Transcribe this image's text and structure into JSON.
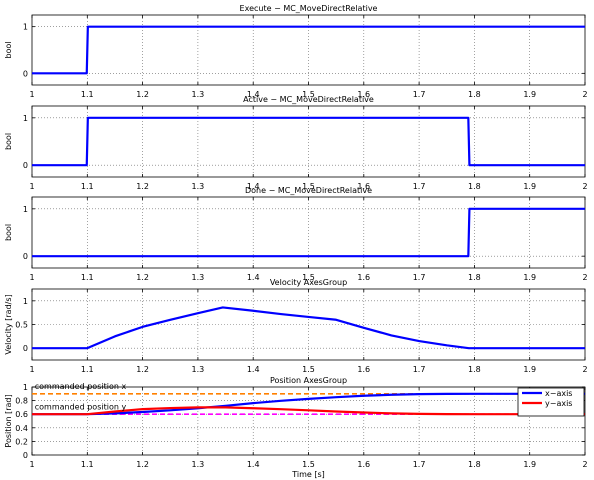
{
  "figure": {
    "background": "#ffffff",
    "axes_color": "#000000",
    "grid_color": "#666666"
  },
  "chart_data": [
    {
      "type": "line",
      "title": "Execute − MC_MoveDirectRelative",
      "xlabel": "",
      "ylabel": "bool",
      "xlim": [
        1,
        2
      ],
      "ylim": [
        -0.25,
        1.25
      ],
      "xticks": [
        1,
        1.1,
        1.2,
        1.3,
        1.4,
        1.5,
        1.6,
        1.7,
        1.8,
        1.9,
        2
      ],
      "xtick_labels": [
        "1",
        "1.1",
        "1.2",
        "1.3",
        "1.4",
        "1.5",
        "1.6",
        "1.7",
        "1.8",
        "1.9",
        "2"
      ],
      "yticks": [
        0,
        1
      ],
      "ytick_labels": [
        "0",
        "1"
      ],
      "grid": true,
      "series": [
        {
          "color": "#0000ff",
          "dash": "solid",
          "x": [
            1,
            1.099,
            1.101,
            2
          ],
          "y": [
            0,
            0,
            1,
            1
          ]
        }
      ]
    },
    {
      "type": "line",
      "title": "Active − MC_MoveDirectRelative",
      "xlabel": "",
      "ylabel": "bool",
      "xlim": [
        1,
        2
      ],
      "ylim": [
        -0.25,
        1.25
      ],
      "xticks": [
        1,
        1.1,
        1.2,
        1.3,
        1.4,
        1.5,
        1.6,
        1.7,
        1.8,
        1.9,
        2
      ],
      "xtick_labels": [
        "1",
        "1.1",
        "1.2",
        "1.3",
        "1.4",
        "1.5",
        "1.6",
        "1.7",
        "1.8",
        "1.9",
        "2"
      ],
      "yticks": [
        0,
        1
      ],
      "ytick_labels": [
        "0",
        "1"
      ],
      "grid": true,
      "series": [
        {
          "color": "#0000ff",
          "dash": "solid",
          "x": [
            1,
            1.099,
            1.101,
            1.789,
            1.791,
            2
          ],
          "y": [
            0,
            0,
            1,
            1,
            0,
            0
          ]
        }
      ]
    },
    {
      "type": "line",
      "title": "Done − MC_MoveDirectRelative",
      "xlabel": "",
      "ylabel": "bool",
      "xlim": [
        1,
        2
      ],
      "ylim": [
        -0.25,
        1.25
      ],
      "xticks": [
        1,
        1.1,
        1.2,
        1.3,
        1.4,
        1.5,
        1.6,
        1.7,
        1.8,
        1.9,
        2
      ],
      "xtick_labels": [
        "1",
        "1.1",
        "1.2",
        "1.3",
        "1.4",
        "1.5",
        "1.6",
        "1.7",
        "1.8",
        "1.9",
        "2"
      ],
      "yticks": [
        0,
        1
      ],
      "ytick_labels": [
        "0",
        "1"
      ],
      "grid": true,
      "series": [
        {
          "color": "#0000ff",
          "dash": "solid",
          "x": [
            1,
            1.789,
            1.791,
            2
          ],
          "y": [
            0,
            0,
            1,
            1
          ]
        }
      ]
    },
    {
      "type": "line",
      "title": "Velocity AxesGroup",
      "xlabel": "",
      "ylabel": "Velocity [rad/s]",
      "xlim": [
        1,
        2
      ],
      "ylim": [
        -0.25,
        1.25
      ],
      "xticks": [
        1,
        1.1,
        1.2,
        1.3,
        1.4,
        1.5,
        1.6,
        1.7,
        1.8,
        1.9,
        2
      ],
      "xtick_labels": [
        "1",
        "1.1",
        "1.2",
        "1.3",
        "1.4",
        "1.5",
        "1.6",
        "1.7",
        "1.8",
        "1.9",
        "2"
      ],
      "yticks": [
        0,
        0.5,
        1
      ],
      "ytick_labels": [
        "0",
        "0.5",
        "1"
      ],
      "grid": true,
      "series": [
        {
          "color": "#0000ff",
          "dash": "solid",
          "x": [
            1,
            1.1,
            1.15,
            1.2,
            1.25,
            1.3,
            1.345,
            1.4,
            1.45,
            1.5,
            1.55,
            1.6,
            1.65,
            1.7,
            1.75,
            1.79,
            2
          ],
          "y": [
            0,
            0,
            0.25,
            0.45,
            0.6,
            0.74,
            0.86,
            0.79,
            0.72,
            0.66,
            0.6,
            0.43,
            0.27,
            0.15,
            0.06,
            0,
            0
          ]
        }
      ]
    },
    {
      "type": "line",
      "title": "Position AxesGroup",
      "xlabel": "Time [s]",
      "ylabel": "Position [rad]",
      "xlim": [
        1,
        2
      ],
      "ylim": [
        0,
        1
      ],
      "xticks": [
        1,
        1.1,
        1.2,
        1.3,
        1.4,
        1.5,
        1.6,
        1.7,
        1.8,
        1.9,
        2
      ],
      "xtick_labels": [
        "1",
        "1.1",
        "1.2",
        "1.3",
        "1.4",
        "1.5",
        "1.6",
        "1.7",
        "1.8",
        "1.9",
        "2"
      ],
      "yticks": [
        0,
        0.2,
        0.4,
        0.6,
        0.8,
        1
      ],
      "ytick_labels": [
        "0",
        "0.2",
        "0.4",
        "0.6",
        "0.8",
        "1"
      ],
      "grid": true,
      "legend": "top-right",
      "series": [
        {
          "color": "#ff8000",
          "dash": "dashed",
          "x": [
            1,
            2
          ],
          "y": [
            0.9,
            0.9
          ]
        },
        {
          "color": "#ff00ff",
          "dash": "dashed",
          "x": [
            1,
            2
          ],
          "y": [
            0.6,
            0.6
          ]
        },
        {
          "name": "x−axis",
          "color": "#0000ff",
          "dash": "solid",
          "x": [
            1,
            1.1,
            1.15,
            1.2,
            1.25,
            1.3,
            1.35,
            1.4,
            1.45,
            1.5,
            1.55,
            1.6,
            1.65,
            1.7,
            1.75,
            1.8,
            2
          ],
          "y": [
            0.6,
            0.6,
            0.612,
            0.632,
            0.657,
            0.688,
            0.723,
            0.763,
            0.797,
            0.825,
            0.85,
            0.871,
            0.886,
            0.895,
            0.899,
            0.9,
            0.9
          ]
        },
        {
          "name": "y−axis",
          "color": "#ff0000",
          "dash": "solid",
          "x": [
            1,
            1.1,
            1.15,
            1.2,
            1.25,
            1.3,
            1.35,
            1.4,
            1.45,
            1.5,
            1.55,
            1.6,
            1.65,
            1.7,
            1.75,
            1.8,
            2
          ],
          "y": [
            0.6,
            0.6,
            0.64,
            0.675,
            0.69,
            0.7,
            0.7,
            0.688,
            0.674,
            0.657,
            0.64,
            0.625,
            0.612,
            0.605,
            0.601,
            0.6,
            0.6
          ]
        }
      ],
      "annotations": [
        {
          "text": "commanded position x",
          "x": 1.005,
          "y": 0.97
        },
        {
          "text": "commanded position y",
          "x": 1.005,
          "y": 0.67
        }
      ]
    }
  ]
}
